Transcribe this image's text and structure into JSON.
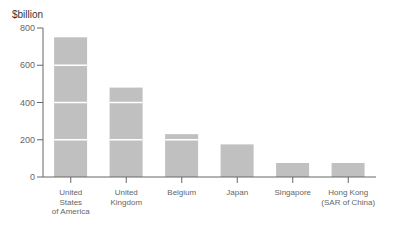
{
  "chart_data": {
    "type": "bar",
    "ylabel": "$billion",
    "categories": [
      "United\nStates\nof America",
      "United\nKingdom",
      "Belgium",
      "Japan",
      "Singapore",
      "Hong Kong\n(SAR of China)"
    ],
    "values": [
      750,
      480,
      230,
      175,
      75,
      75
    ],
    "segment_lines": [
      [
        200,
        400,
        600
      ],
      [
        200,
        400
      ],
      [
        200
      ],
      [],
      [],
      []
    ],
    "color": "#c0c0c0",
    "ylim": [
      0,
      800
    ],
    "yticks": [
      0,
      200,
      400,
      600,
      800
    ],
    "grid": false
  }
}
